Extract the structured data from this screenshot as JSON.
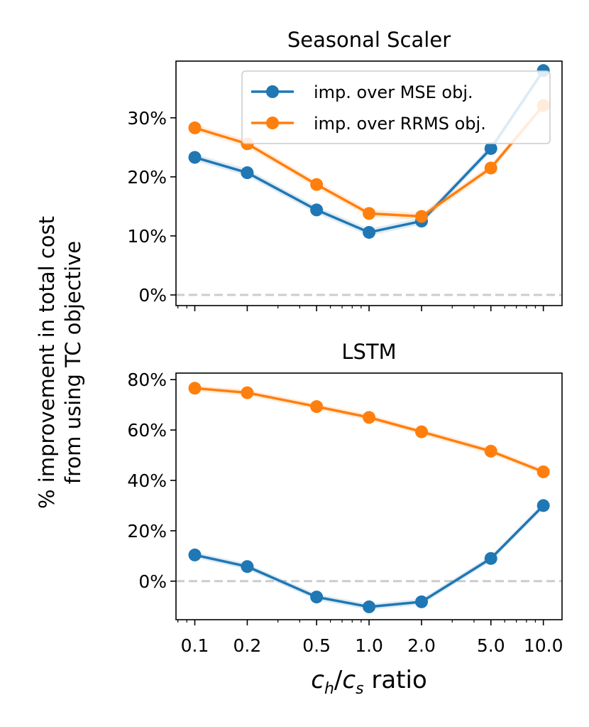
{
  "shared_ylabel_line1": "% improvement in total cost",
  "shared_ylabel_line2": "from using TC objective",
  "xlabel": {
    "c": "c",
    "h": "h",
    "slash": "/",
    "s": "s",
    "rest": " ratio"
  },
  "colors": {
    "mse": "#1f77b4",
    "rrms": "#ff7f0e",
    "zero_line": "#cccccc"
  },
  "chart_data": [
    {
      "type": "line",
      "title": "Seasonal Scaler",
      "x": [
        0.1,
        0.2,
        0.5,
        1.0,
        2.0,
        5.0,
        10.0
      ],
      "xscale": "log",
      "xlim": [
        0.078,
        12.8
      ],
      "ylim": [
        -1.8,
        39.6
      ],
      "yticks": [
        0,
        10,
        20,
        30
      ],
      "ytick_labels": [
        "0%",
        "10%",
        "20%",
        "30%"
      ],
      "xtick_labels": [],
      "legend_position": "top-right",
      "series": [
        {
          "name": "imp. over MSE obj.",
          "color": "#1f77b4",
          "values": [
            23.3,
            20.7,
            14.4,
            10.6,
            12.5,
            24.8,
            38.0
          ]
        },
        {
          "name": "imp. over RRMS obj.",
          "color": "#ff7f0e",
          "values": [
            28.3,
            25.6,
            18.7,
            13.8,
            13.3,
            21.5,
            32.1
          ]
        }
      ]
    },
    {
      "type": "line",
      "title": "LSTM",
      "x": [
        0.1,
        0.2,
        0.5,
        1.0,
        2.0,
        5.0,
        10.0
      ],
      "xscale": "log",
      "xlim": [
        0.078,
        12.8
      ],
      "ylim": [
        -15.3,
        82.6
      ],
      "yticks": [
        0,
        20,
        40,
        60,
        80
      ],
      "ytick_labels": [
        "0%",
        "20%",
        "40%",
        "60%",
        "80%"
      ],
      "xtick_labels": [
        "0.1",
        "0.2",
        "0.5",
        "1.0",
        "2.0",
        "5.0",
        "10.0"
      ],
      "series": [
        {
          "name": "imp. over MSE obj.",
          "color": "#1f77b4",
          "values": [
            10.4,
            5.8,
            -6.3,
            -10.2,
            -8.2,
            9.0,
            30.0
          ]
        },
        {
          "name": "imp. over RRMS obj.",
          "color": "#ff7f0e",
          "values": [
            76.6,
            74.8,
            69.3,
            65.0,
            59.3,
            51.6,
            43.4
          ]
        }
      ]
    }
  ]
}
